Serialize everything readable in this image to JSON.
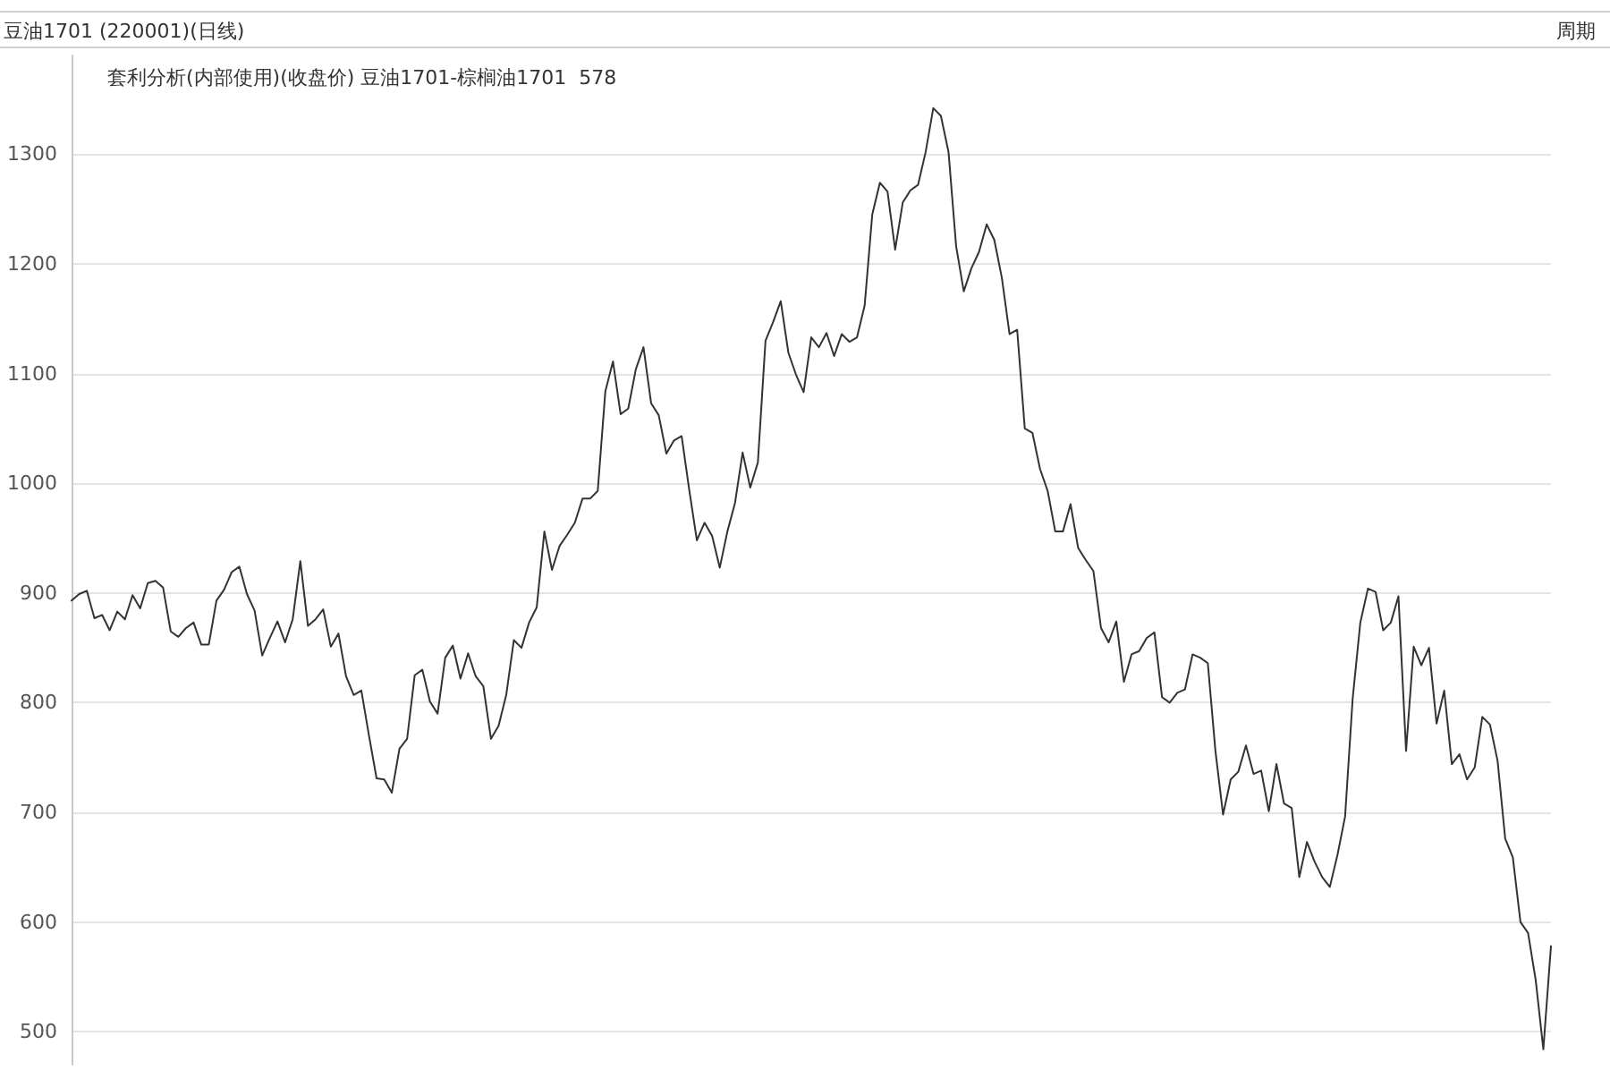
{
  "chart_data": {
    "type": "line",
    "title": "豆油1701 (220001)(日线)",
    "subtitle": "套利分析(内部使用)(收盘价) 豆油1701-棕榈油1701  578",
    "annotations": [
      "周期"
    ],
    "categories": [
      null,
      null,
      null,
      null,
      null,
      null,
      null,
      null,
      null,
      null,
      null,
      null,
      null,
      null,
      null,
      null,
      null,
      null,
      null,
      null,
      null,
      null,
      null,
      null,
      null,
      null,
      null,
      null,
      null,
      null,
      null,
      null,
      null,
      null,
      null,
      null,
      null,
      null,
      null,
      null,
      null,
      null,
      null,
      null,
      null,
      null,
      null,
      null,
      null,
      null,
      null,
      null,
      null,
      null,
      null,
      null,
      null,
      null,
      null,
      null,
      null,
      null,
      null,
      null,
      null,
      null,
      null,
      null,
      null,
      null,
      null,
      null,
      null,
      null,
      null,
      null,
      null,
      null,
      null,
      null,
      null,
      null,
      null,
      null,
      null,
      null,
      null,
      null,
      null,
      null,
      null,
      null,
      null,
      null,
      null,
      null,
      null,
      null,
      null,
      null,
      null,
      null,
      null,
      null,
      null,
      null,
      null,
      null,
      null,
      null,
      null,
      null,
      null,
      null,
      null,
      null,
      null,
      null,
      null,
      null,
      null,
      null,
      null,
      null,
      null,
      null,
      null,
      null,
      null,
      null,
      null,
      null,
      null,
      null,
      null,
      null,
      null,
      null,
      null,
      null,
      null,
      null,
      null,
      null,
      null,
      null,
      null,
      null,
      null,
      null,
      null,
      null,
      null,
      null,
      null,
      null,
      null,
      null,
      null,
      null,
      null,
      null,
      null,
      null,
      null,
      null,
      null,
      null,
      null,
      null,
      null,
      null,
      null,
      null,
      null,
      null,
      null,
      null,
      null,
      null,
      null,
      null,
      null,
      null,
      null,
      null,
      null,
      null,
      null,
      null,
      null,
      null,
      null,
      null,
      null
    ],
    "series": [
      {
        "color": "#333333",
        "values": [
          893,
          899,
          902,
          877,
          880,
          866,
          883,
          876,
          898,
          886,
          909,
          911,
          905,
          865,
          860,
          868,
          873,
          853,
          853,
          893,
          903,
          919,
          924,
          899,
          884,
          843,
          859,
          874,
          855,
          876,
          929,
          870,
          876,
          885,
          851,
          863,
          824,
          807,
          811,
          770,
          731,
          730,
          718,
          758,
          767,
          825,
          830,
          801,
          790,
          841,
          852,
          822,
          845,
          824,
          815,
          767,
          779,
          807,
          857,
          850,
          873,
          887,
          956,
          921,
          943,
          953,
          964,
          986,
          986,
          993,
          1084,
          1111,
          1063,
          1068,
          1104,
          1124,
          1073,
          1062,
          1027,
          1039,
          1043,
          994,
          948,
          964,
          952,
          923,
          956,
          982,
          1028,
          996,
          1019,
          1130,
          1147,
          1166,
          1119,
          1099,
          1083,
          1133,
          1124,
          1137,
          1116,
          1136,
          1129,
          1133,
          1162,
          1245,
          1274,
          1266,
          1213,
          1256,
          1267,
          1272,
          1302,
          1342,
          1335,
          1302,
          1216,
          1175,
          1196,
          1211,
          1236,
          1222,
          1187,
          1136,
          1140,
          1050,
          1046,
          1013,
          993,
          956,
          956,
          981,
          941,
          930,
          920,
          868,
          855,
          874,
          819,
          844,
          847,
          859,
          864,
          805,
          800,
          809,
          812,
          844,
          841,
          836,
          756,
          698,
          730,
          737,
          761,
          735,
          738,
          701,
          744,
          708,
          704,
          641,
          673,
          655,
          641,
          632,
          661,
          696,
          804,
          873,
          904,
          901,
          866,
          873,
          897,
          756,
          851,
          834,
          850,
          781,
          811,
          744,
          753,
          730,
          741,
          787,
          780,
          747,
          676,
          659,
          600,
          590,
          547,
          484,
          578
        ]
      }
    ],
    "ylim": [
      470,
      1390
    ],
    "yticks": [
      500,
      600,
      700,
      800,
      900,
      1000,
      1100,
      1200,
      1300
    ],
    "grid": "y",
    "tick_labels": "y",
    "line_style": "solid"
  }
}
